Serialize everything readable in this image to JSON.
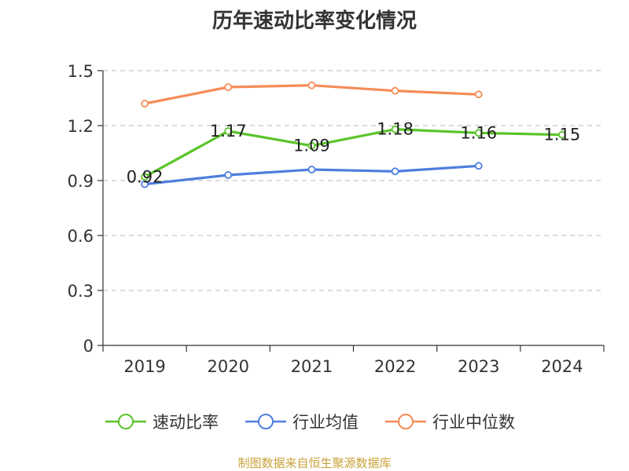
{
  "chart_data": {
    "type": "line",
    "title": "历年速动比率变化情况",
    "categories": [
      "2019",
      "2020",
      "2021",
      "2022",
      "2023",
      "2024"
    ],
    "ylim": [
      0,
      1.5
    ],
    "yticks": [
      "0",
      "0.3",
      "0.6",
      "0.9",
      "1.2",
      "1.5"
    ],
    "grid": true,
    "legend_position": "bottom",
    "series": [
      {
        "name": "速动比率",
        "color": "#5bc42c",
        "values": [
          0.92,
          1.17,
          1.09,
          1.18,
          1.16,
          1.15
        ],
        "labels": [
          "0.92",
          "1.17",
          "1.09",
          "1.18",
          "1.16",
          "1.15"
        ]
      },
      {
        "name": "行业均值",
        "color": "#4e7ede",
        "values": [
          0.88,
          0.93,
          0.96,
          0.95,
          0.98,
          null
        ]
      },
      {
        "name": "行业中位数",
        "color": "#f58c57",
        "values": [
          1.32,
          1.41,
          1.42,
          1.39,
          1.37,
          null
        ]
      }
    ]
  },
  "source_text": "制图数据来自恒生聚源数据库"
}
